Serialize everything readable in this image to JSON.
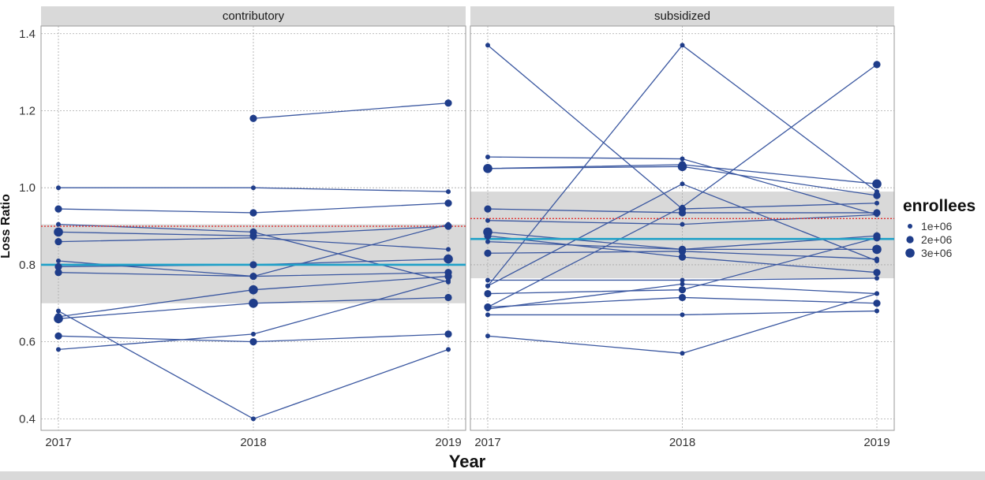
{
  "chart_data": {
    "type": "line",
    "xlabel": "Year",
    "ylabel": "Loss Ratio",
    "x_ticks": [
      "2017",
      "2018",
      "2019"
    ],
    "y_ticks": [
      "0.4",
      "0.6",
      "0.8",
      "1.0",
      "1.2",
      "1.4"
    ],
    "ylim": [
      0.37,
      1.42
    ],
    "grid": true,
    "legend": {
      "title": "enrollees",
      "position": "right",
      "entries": [
        {
          "label": "1e+06",
          "size": 1
        },
        {
          "label": "2e+06",
          "size": 2
        },
        {
          "label": "3e+06",
          "size": 3
        }
      ]
    },
    "colors": {
      "series": "#1f3d8a",
      "line": "#3a57a0",
      "mean_line": "#1ea0c8",
      "reference_line": "#e03030",
      "band": "#d9d9d9",
      "strip": "#d9d9d9"
    },
    "panels": [
      {
        "title": "contributory",
        "mean_line": 0.8,
        "reference_line": 0.9,
        "band": [
          0.7,
          0.905
        ],
        "series": [
          {
            "values": [
              1.0,
              1.0,
              0.99
            ],
            "sizes": [
              1,
              1,
              1
            ]
          },
          {
            "values": [
              null,
              1.18,
              1.22
            ],
            "sizes": [
              null,
              2,
              2
            ]
          },
          {
            "values": [
              0.945,
              0.935,
              0.96
            ],
            "sizes": [
              2,
              2,
              2
            ]
          },
          {
            "values": [
              0.905,
              0.885,
              0.755
            ],
            "sizes": [
              1,
              2,
              1
            ]
          },
          {
            "values": [
              0.885,
              0.875,
              0.9
            ],
            "sizes": [
              3,
              2,
              2
            ]
          },
          {
            "values": [
              0.86,
              0.87,
              0.84
            ],
            "sizes": [
              2,
              1,
              1
            ]
          },
          {
            "values": [
              0.81,
              0.77,
              0.905
            ],
            "sizes": [
              1,
              2,
              1
            ]
          },
          {
            "values": [
              0.795,
              0.8,
              0.815
            ],
            "sizes": [
              2,
              2,
              3
            ]
          },
          {
            "values": [
              0.78,
              0.77,
              0.78
            ],
            "sizes": [
              2,
              1,
              2
            ]
          },
          {
            "values": [
              0.665,
              0.735,
              0.77
            ],
            "sizes": [
              2,
              3,
              2
            ]
          },
          {
            "values": [
              0.66,
              0.7,
              0.715
            ],
            "sizes": [
              3,
              3,
              2
            ]
          },
          {
            "values": [
              0.68,
              0.4,
              0.58
            ],
            "sizes": [
              1,
              1,
              1
            ]
          },
          {
            "values": [
              0.615,
              0.6,
              0.62
            ],
            "sizes": [
              2,
              2,
              2
            ]
          },
          {
            "values": [
              0.58,
              0.62,
              0.76
            ],
            "sizes": [
              1,
              1,
              1
            ]
          }
        ]
      },
      {
        "title": "subsidized",
        "mean_line": 0.867,
        "reference_line": 0.92,
        "band": [
          0.765,
          0.99
        ],
        "series": [
          {
            "values": [
              1.37,
              0.945,
              0.96
            ],
            "sizes": [
              1,
              2,
              1
            ]
          },
          {
            "values": [
              0.745,
              1.37,
              0.99
            ],
            "sizes": [
              1,
              1,
              1
            ]
          },
          {
            "values": [
              1.08,
              1.075,
              0.93
            ],
            "sizes": [
              1,
              1,
              1
            ]
          },
          {
            "values": [
              1.05,
              1.055,
              0.98
            ],
            "sizes": [
              3,
              3,
              2
            ]
          },
          {
            "values": [
              1.05,
              1.06,
              1.01
            ],
            "sizes": [
              2,
              2,
              3
            ]
          },
          {
            "values": [
              0.945,
              0.935,
              0.935
            ],
            "sizes": [
              2,
              2,
              2
            ]
          },
          {
            "values": [
              0.915,
              0.905,
              0.93
            ],
            "sizes": [
              1,
              1,
              1
            ]
          },
          {
            "values": [
              0.885,
              0.84,
              0.875
            ],
            "sizes": [
              3,
              2,
              2
            ]
          },
          {
            "values": [
              0.875,
              0.82,
              0.78
            ],
            "sizes": [
              2,
              2,
              2
            ]
          },
          {
            "values": [
              0.86,
              0.84,
              0.84
            ],
            "sizes": [
              1,
              2,
              3
            ]
          },
          {
            "values": [
              0.83,
              0.835,
              0.815
            ],
            "sizes": [
              2,
              2,
              1
            ]
          },
          {
            "values": [
              0.76,
              0.76,
              0.765
            ],
            "sizes": [
              1,
              1,
              1
            ]
          },
          {
            "values": [
              0.745,
              1.01,
              0.81
            ],
            "sizes": [
              1,
              1,
              1
            ]
          },
          {
            "values": [
              0.725,
              0.735,
              0.87
            ],
            "sizes": [
              2,
              2,
              2
            ]
          },
          {
            "values": [
              0.69,
              0.95,
              1.32
            ],
            "sizes": [
              2,
              1,
              2
            ]
          },
          {
            "values": [
              0.69,
              0.715,
              0.7
            ],
            "sizes": [
              2,
              2,
              2
            ]
          },
          {
            "values": [
              0.685,
              0.75,
              0.725
            ],
            "sizes": [
              1,
              1,
              1
            ]
          },
          {
            "values": [
              0.67,
              0.67,
              0.68
            ],
            "sizes": [
              1,
              1,
              1
            ]
          },
          {
            "values": [
              0.615,
              0.57,
              0.725
            ],
            "sizes": [
              1,
              1,
              1
            ]
          }
        ]
      }
    ]
  }
}
